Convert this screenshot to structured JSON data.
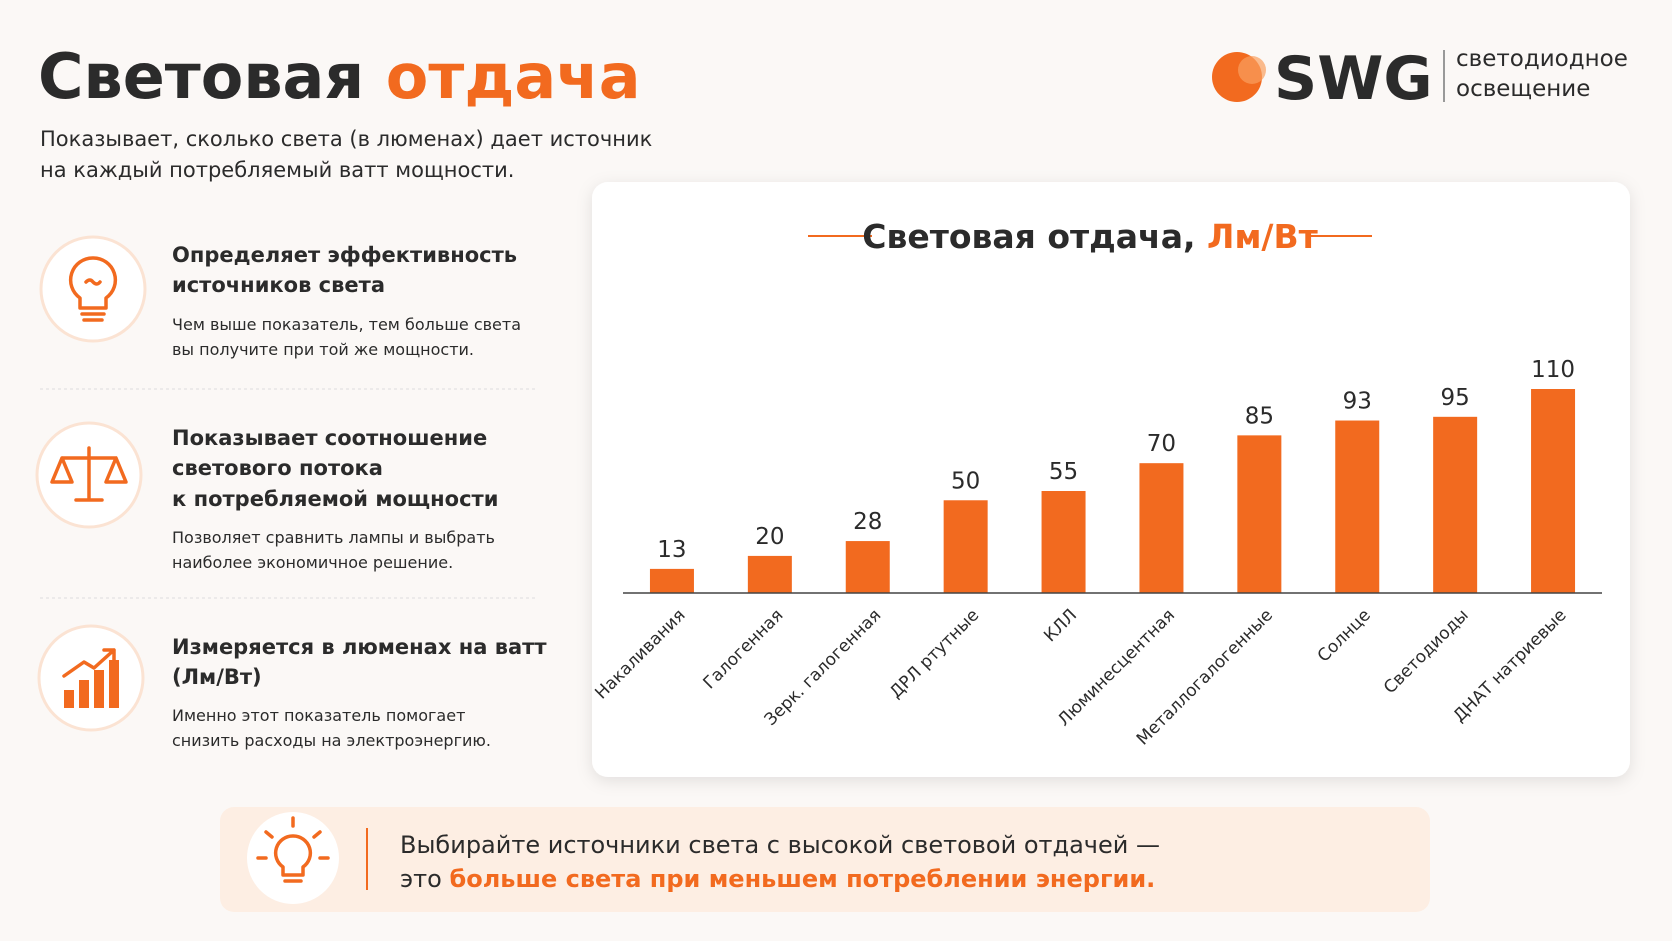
{
  "header": {
    "title": [
      "Световая",
      "отдача"
    ],
    "subtitle": [
      "Показывает, сколько света (в люменах) дает источник",
      "на каждый потребляемый ватт мощности."
    ],
    "logo": {
      "brand": "SWG",
      "tagline": [
        "светодиодное",
        "освещение"
      ]
    }
  },
  "features": [
    {
      "title": [
        "Определяет эффективность",
        "источников света"
      ],
      "text": [
        "Чем выше показатель, тем больше света",
        "вы получите при той же мощности."
      ]
    },
    {
      "title": [
        "Показывает соотношение",
        "светового потока",
        "к потребляемой мощности"
      ],
      "text": [
        "Позволяет сравнить лампы и выбрать",
        "наиболее экономичное решение."
      ]
    },
    {
      "title": [
        "Измеряется в люменах на ватт",
        "(Лм/Вт)"
      ],
      "text": [
        "Именно этот показатель помогает",
        "снизить расходы на электроэнергию."
      ]
    }
  ],
  "chart_data": {
    "type": "bar",
    "title": [
      "Световая отдача,",
      "Лм/Вт"
    ],
    "categories": [
      "Накаливания",
      "Галогенная",
      "Зерк. галогенная",
      "ДРЛ ртутные",
      "КЛЛ",
      "Люминесцентная",
      "Металлогалогенные",
      "Солнце",
      "Светодиоды",
      "ДНАТ натриевые"
    ],
    "values": [
      13,
      20,
      28,
      50,
      55,
      70,
      85,
      93,
      95,
      110
    ],
    "color": "#f26a1f",
    "ylim": [
      0,
      110
    ],
    "grid": false
  },
  "footer": {
    "line1": "Выбирайте источники света с высокой световой отдачей —",
    "line2_plain": "это",
    "line2_highlight": "больше света при меньшем потреблении энергии."
  }
}
